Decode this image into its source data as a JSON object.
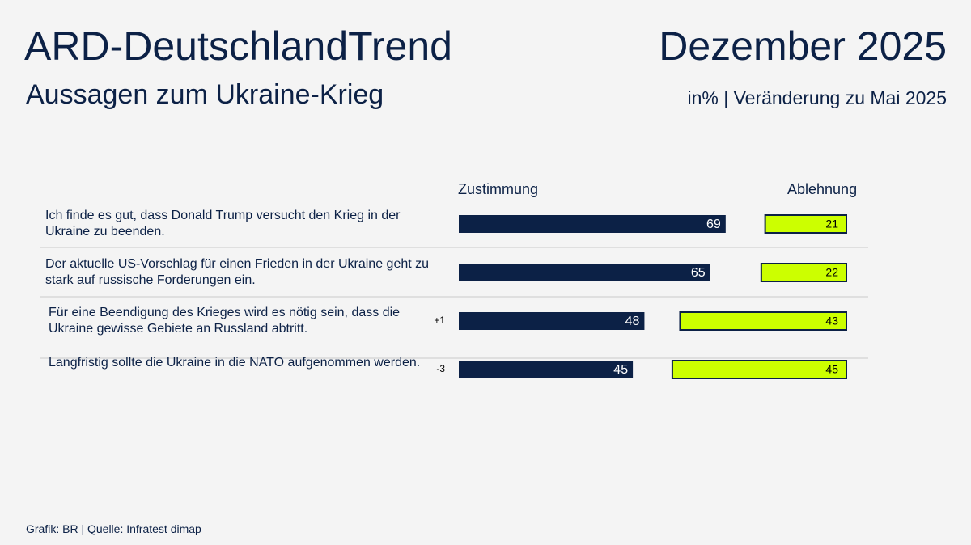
{
  "chart_data": {
    "type": "diverging_bar",
    "title": "ARD-DeutschlandTrend",
    "date": "Dezember 2025",
    "subtitle": "Aussagen zum Ukraine-Krieg",
    "unit_note": "in% | Veränderung zu Mai 2025",
    "source": "Grafik: BR | Quelle: Infratest dimap",
    "categories": [
      "Ich finde es gut, dass Donald Trump versucht den Krieg in der Ukraine zu beenden.",
      "Der aktuelle US-Vorschlag für einen Frieden in der Ukraine geht zu stark auf russische Forderungen ein.",
      "Für eine Beendigung des Krieges wird es nötig sein, dass die Ukraine gewisse Gebiete an Russland abtritt.",
      "Langfristig sollte die Ukraine in die NATO aufgenommen werden."
    ],
    "series": [
      {
        "name": "Zustimmung",
        "color": "#0c2146",
        "values": [
          69,
          65,
          48,
          45
        ]
      },
      {
        "name": "Ablehnung",
        "color": "#ccff00",
        "values": [
          21,
          22,
          43,
          45
        ]
      }
    ],
    "changes": {
      "values": [
        null,
        null,
        1,
        -3
      ],
      "value_labels": [
        null,
        null,
        "+1",
        "-3"
      ]
    }
  }
}
